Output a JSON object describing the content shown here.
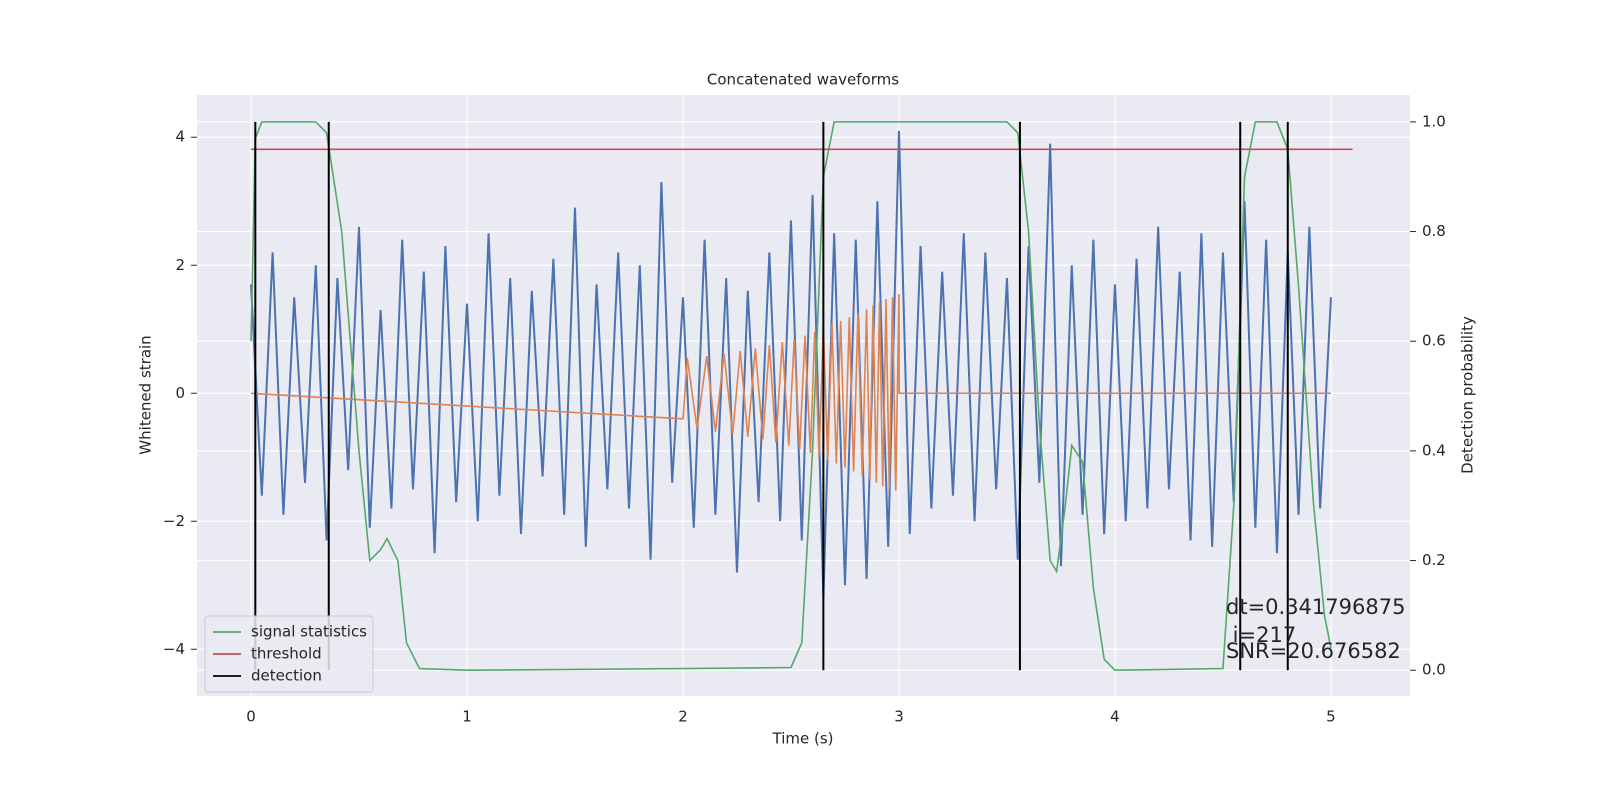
{
  "chart_data": {
    "type": "line",
    "title": "Concatenated waveforms",
    "xlabel": "Time (s)",
    "ylabel": "Whitened strain",
    "y2label": "Detection probability",
    "xlim": [
      -0.25,
      5.366
    ],
    "ylim": [
      -4.73,
      4.66
    ],
    "y2lim": [
      -0.047,
      1.049
    ],
    "xticks": [
      0,
      1,
      2,
      3,
      4,
      5
    ],
    "yticks": [
      {
        "value": -4,
        "label": "−4"
      },
      {
        "value": -2,
        "label": "−2"
      },
      0,
      2,
      4
    ],
    "y2ticks": [
      {
        "value": 0,
        "label": "0.0"
      },
      0.2,
      0.4,
      0.6,
      0.8,
      {
        "value": 1,
        "label": "1.0"
      }
    ],
    "grid": true,
    "legend": "lower left",
    "background": "#eaeaf2",
    "series": [
      {
        "color": "#4c72b0",
        "axis": "y",
        "x": [
          0,
          0.05,
          0.1,
          0.15,
          0.2,
          0.25,
          0.3,
          0.35,
          0.4,
          0.45,
          0.5,
          0.55,
          0.6,
          0.65,
          0.7,
          0.75,
          0.8,
          0.85,
          0.9,
          0.95,
          1,
          1.05,
          1.1,
          1.15,
          1.2,
          1.25,
          1.3,
          1.35,
          1.4,
          1.45,
          1.5,
          1.55,
          1.6,
          1.65,
          1.7,
          1.75,
          1.8,
          1.85,
          1.9,
          1.95,
          2,
          2.05,
          2.1,
          2.15,
          2.2,
          2.25,
          2.3,
          2.35,
          2.4,
          2.45,
          2.5,
          2.55,
          2.6,
          2.65,
          2.7,
          2.75,
          2.8,
          2.85,
          2.9,
          2.95,
          3,
          3.05,
          3.1,
          3.15,
          3.2,
          3.25,
          3.3,
          3.35,
          3.4,
          3.45,
          3.5,
          3.55,
          3.6,
          3.65,
          3.7,
          3.75,
          3.8,
          3.85,
          3.9,
          3.95,
          4,
          4.05,
          4.1,
          4.15,
          4.2,
          4.25,
          4.3,
          4.35,
          4.4,
          4.45,
          4.5,
          4.55,
          4.6,
          4.65,
          4.7,
          4.75,
          4.8,
          4.85,
          4.9,
          4.95,
          5
        ],
        "values": [
          1.7,
          -1.6,
          2.2,
          -1.9,
          1.5,
          -1.4,
          2.0,
          -2.3,
          1.8,
          -1.2,
          2.6,
          -2.1,
          1.3,
          -1.8,
          2.4,
          -1.5,
          1.9,
          -2.5,
          2.3,
          -1.7,
          1.4,
          -2.0,
          2.5,
          -1.6,
          1.8,
          -2.2,
          1.6,
          -1.3,
          2.1,
          -1.9,
          2.9,
          -2.4,
          1.7,
          -1.5,
          2.2,
          -1.8,
          2.0,
          -2.6,
          3.3,
          -1.4,
          1.5,
          -2.1,
          2.4,
          -1.9,
          1.8,
          -2.8,
          1.6,
          -1.7,
          2.2,
          -2.0,
          2.7,
          -2.3,
          3.1,
          -3.2,
          2.5,
          -3.0,
          2.4,
          -2.9,
          3.0,
          -2.4,
          4.1,
          -2.2,
          2.3,
          -1.8,
          1.9,
          -1.6,
          2.5,
          -2.0,
          2.2,
          -1.5,
          1.8,
          -2.6,
          2.3,
          -1.4,
          3.9,
          -2.7,
          2.0,
          -1.9,
          2.4,
          -2.2,
          1.7,
          -2.0,
          2.1,
          -1.8,
          2.6,
          -1.5,
          1.9,
          -2.3,
          2.5,
          -2.4,
          2.2,
          -1.7,
          3.0,
          -2.1,
          2.4,
          -2.5,
          2.2,
          -1.9,
          2.6,
          -1.8,
          1.5
        ]
      },
      {
        "color": "#dd8452",
        "axis": "y",
        "x": [
          0,
          2.0,
          2.02,
          2.065,
          2.11,
          2.15,
          2.19,
          2.23,
          2.265,
          2.3,
          2.335,
          2.37,
          2.4,
          2.43,
          2.46,
          2.49,
          2.515,
          2.54,
          2.565,
          2.59,
          2.61,
          2.63,
          2.65,
          2.67,
          2.69,
          2.71,
          2.73,
          2.75,
          2.77,
          2.79,
          2.81,
          2.83,
          2.85,
          2.865,
          2.88,
          2.895,
          2.91,
          2.925,
          2.94,
          2.955,
          2.97,
          2.985,
          3.0,
          3.001,
          5.0
        ],
        "values": [
          0,
          -0.4,
          0.55,
          -0.55,
          0.58,
          -0.6,
          0.62,
          -0.64,
          0.66,
          -0.68,
          0.7,
          -0.72,
          0.75,
          -0.77,
          0.8,
          -0.82,
          0.85,
          -0.88,
          0.9,
          -0.93,
          0.96,
          -0.99,
          1.02,
          -1.05,
          1.08,
          -1.1,
          1.13,
          -1.16,
          1.19,
          -1.22,
          1.25,
          -1.28,
          1.31,
          -1.34,
          1.37,
          -1.4,
          1.42,
          -1.45,
          1.47,
          -1.49,
          1.5,
          -1.52,
          1.55,
          0,
          0
        ]
      },
      {
        "name": "signal statistics",
        "color": "#55a868",
        "axis": "y2",
        "x": [
          0,
          0.02,
          0.05,
          0.3,
          0.35,
          0.42,
          0.5,
          0.55,
          0.6,
          0.63,
          0.68,
          0.72,
          0.78,
          1.0,
          2.0,
          2.5,
          2.55,
          2.6,
          2.65,
          2.7,
          3.5,
          3.55,
          3.6,
          3.65,
          3.7,
          3.73,
          3.77,
          3.8,
          3.85,
          3.9,
          3.95,
          4.0,
          4.5,
          4.55,
          4.6,
          4.65,
          4.75,
          4.8,
          4.85,
          4.92,
          4.97,
          5.0
        ],
        "values": [
          0.6,
          0.97,
          1.0,
          1.0,
          0.98,
          0.8,
          0.4,
          0.2,
          0.22,
          0.24,
          0.2,
          0.05,
          0.003,
          0,
          0.003,
          0.005,
          0.05,
          0.4,
          0.9,
          1.0,
          1.0,
          0.98,
          0.8,
          0.45,
          0.2,
          0.18,
          0.3,
          0.41,
          0.38,
          0.15,
          0.02,
          0,
          0.003,
          0.3,
          0.9,
          1.0,
          1.0,
          0.95,
          0.7,
          0.3,
          0.1,
          0.04
        ]
      },
      {
        "name": "threshold",
        "color": "#c44e52",
        "axis": "y2",
        "x": [
          0,
          5.1
        ],
        "values": [
          0.95,
          0.95
        ]
      }
    ],
    "detection": {
      "name": "detection",
      "color": "#000000",
      "x": [
        0.02,
        0.36,
        2.65,
        3.56,
        4.58,
        4.8
      ]
    },
    "annotations": [
      "dt=0.341796875",
      " i=217",
      "SNR=20.676582"
    ]
  }
}
